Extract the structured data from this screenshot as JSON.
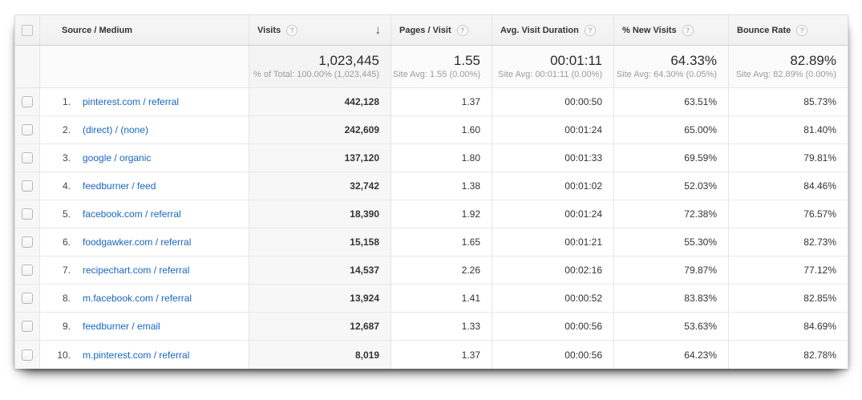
{
  "table": {
    "columns": {
      "source": {
        "label": "Source / Medium"
      },
      "visits": {
        "label": "Visits"
      },
      "pages": {
        "label": "Pages / Visit"
      },
      "duration": {
        "label": "Avg. Visit Duration"
      },
      "new_visits": {
        "label": "% New Visits"
      },
      "bounce": {
        "label": "Bounce Rate"
      }
    },
    "icons": {
      "help": "?",
      "sort_descending": "↓"
    },
    "summary": {
      "visits": "1,023,445",
      "visits_sub": "% of Total: 100.00% (1,023,445)",
      "pages": "1.55",
      "pages_sub": "Site Avg: 1.55 (0.00%)",
      "duration": "00:01:11",
      "duration_sub": "Site Avg: 00:01:11 (0.00%)",
      "new_visits": "64.33%",
      "new_visits_sub": "Site Avg: 64.30% (0.05%)",
      "bounce": "82.89%",
      "bounce_sub": "Site Avg: 82.89% (0.00%)"
    },
    "rows": [
      {
        "rank": "1.",
        "source": "pinterest.com / referral",
        "visits": "442,128",
        "pages": "1.37",
        "duration": "00:00:50",
        "new_visits": "63.51%",
        "bounce": "85.73%"
      },
      {
        "rank": "2.",
        "source": "(direct) / (none)",
        "visits": "242,609",
        "pages": "1.60",
        "duration": "00:01:24",
        "new_visits": "65.00%",
        "bounce": "81.40%"
      },
      {
        "rank": "3.",
        "source": "google / organic",
        "visits": "137,120",
        "pages": "1.80",
        "duration": "00:01:33",
        "new_visits": "69.59%",
        "bounce": "79.81%"
      },
      {
        "rank": "4.",
        "source": "feedburner / feed",
        "visits": "32,742",
        "pages": "1.38",
        "duration": "00:01:02",
        "new_visits": "52.03%",
        "bounce": "84.46%"
      },
      {
        "rank": "5.",
        "source": "facebook.com / referral",
        "visits": "18,390",
        "pages": "1.92",
        "duration": "00:01:24",
        "new_visits": "72.38%",
        "bounce": "76.57%"
      },
      {
        "rank": "6.",
        "source": "foodgawker.com / referral",
        "visits": "15,158",
        "pages": "1.65",
        "duration": "00:01:21",
        "new_visits": "55.30%",
        "bounce": "82.73%"
      },
      {
        "rank": "7.",
        "source": "recipechart.com / referral",
        "visits": "14,537",
        "pages": "2.26",
        "duration": "00:02:16",
        "new_visits": "79.87%",
        "bounce": "77.12%"
      },
      {
        "rank": "8.",
        "source": "m.facebook.com / referral",
        "visits": "13,924",
        "pages": "1.41",
        "duration": "00:00:52",
        "new_visits": "83.83%",
        "bounce": "82.85%"
      },
      {
        "rank": "9.",
        "source": "feedburner / email",
        "visits": "12,687",
        "pages": "1.33",
        "duration": "00:00:56",
        "new_visits": "53.63%",
        "bounce": "84.69%"
      },
      {
        "rank": "10.",
        "source": "m.pinterest.com / referral",
        "visits": "8,019",
        "pages": "1.37",
        "duration": "00:00:56",
        "new_visits": "64.23%",
        "bounce": "82.78%"
      }
    ]
  },
  "colors": {
    "link": "#1766c2",
    "header_bg": "#f4f4f4",
    "sorted_column_bg": "#f7f7f7",
    "border": "#e5e5e5"
  }
}
